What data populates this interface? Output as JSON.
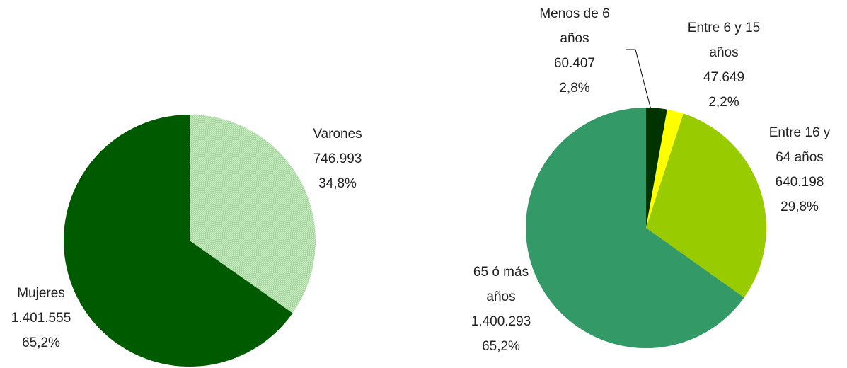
{
  "chart_data": [
    {
      "type": "pie",
      "categories": [
        "Varones",
        "Mujeres"
      ],
      "values": [
        746993,
        1401555
      ],
      "value_labels": [
        "746.993",
        "1.401.555"
      ],
      "percents": [
        34.8,
        65.2
      ],
      "percent_labels": [
        "34,8%",
        "65,2%"
      ],
      "colors": [
        "#a9d9a0",
        "#005a00"
      ]
    },
    {
      "type": "pie",
      "categories": [
        "Menos de 6 años",
        "Entre 6 y 15 años",
        "Entre 16 y 64 años",
        "65 ó más años"
      ],
      "values": [
        60407,
        47649,
        640198,
        1400293
      ],
      "value_labels": [
        "60.407",
        "47.649",
        "640.198",
        "1.400.293"
      ],
      "percents": [
        2.8,
        2.2,
        29.8,
        65.2
      ],
      "percent_labels": [
        "2,8%",
        "2,2%",
        "29,8%",
        "65,2%"
      ],
      "colors": [
        "#003300",
        "#ffff00",
        "#99cc00",
        "#339966"
      ]
    }
  ]
}
